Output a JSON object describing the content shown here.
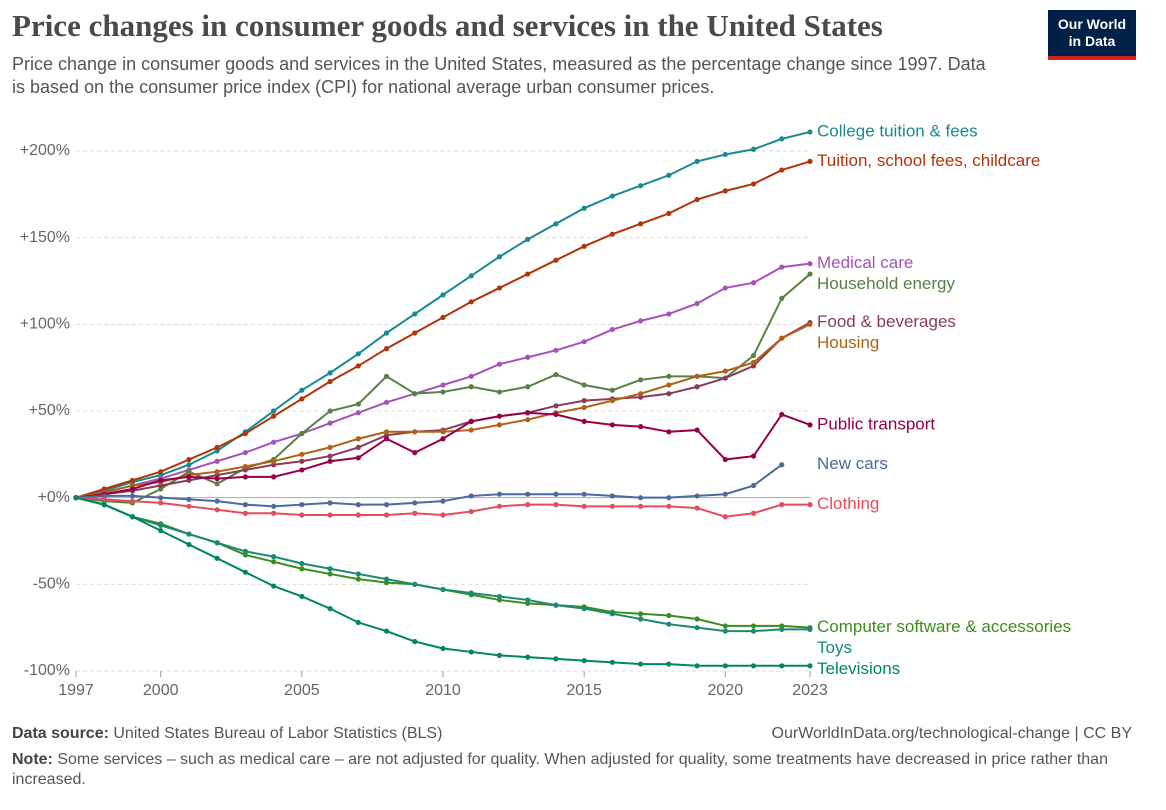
{
  "chart_data": {
    "type": "line",
    "title": "Price changes in consumer goods and services in the United States",
    "subtitle": "Price change in consumer goods and services in the United States, measured as the percentage change since 1997. Data is based on the consumer price index (CPI) for national average urban consumer prices.",
    "logo": [
      "Our World",
      "in Data"
    ],
    "x": [
      1997,
      1998,
      1999,
      2000,
      2001,
      2002,
      2003,
      2004,
      2005,
      2006,
      2007,
      2008,
      2009,
      2010,
      2011,
      2012,
      2013,
      2014,
      2015,
      2016,
      2017,
      2018,
      2019,
      2020,
      2021,
      2022,
      2023
    ],
    "xlim": [
      1997,
      2023
    ],
    "xticks": [
      1997,
      2000,
      2005,
      2010,
      2015,
      2020,
      2023
    ],
    "ylim": [
      -100,
      215
    ],
    "yticks": [
      {
        "value": -100,
        "label": "-100%"
      },
      {
        "value": -50,
        "label": "-50%"
      },
      {
        "value": 0,
        "label": "+0%"
      },
      {
        "value": 50,
        "label": "+50%"
      },
      {
        "value": 100,
        "label": "+100%"
      },
      {
        "value": 150,
        "label": "+150%"
      },
      {
        "value": 200,
        "label": "+200%"
      }
    ],
    "grid": true,
    "series": [
      {
        "name": "College tuition & fees",
        "color": "#178a94",
        "values": [
          0,
          4,
          9,
          13,
          19,
          27,
          38,
          50,
          62,
          72,
          83,
          95,
          106,
          117,
          128,
          139,
          149,
          158,
          167,
          174,
          180,
          186,
          194,
          198,
          201,
          207,
          211
        ]
      },
      {
        "name": "Tuition, school fees, childcare",
        "color": "#b13507",
        "values": [
          0,
          5,
          10,
          15,
          22,
          29,
          37,
          47,
          57,
          67,
          76,
          86,
          95,
          104,
          113,
          121,
          129,
          137,
          145,
          152,
          158,
          164,
          172,
          177,
          181,
          189,
          194
        ]
      },
      {
        "name": "Medical care",
        "color": "#a652ba",
        "values": [
          0,
          3,
          7,
          11,
          16,
          21,
          26,
          32,
          37,
          43,
          49,
          55,
          60,
          65,
          70,
          77,
          81,
          85,
          90,
          97,
          102,
          106,
          112,
          121,
          124,
          133,
          135
        ]
      },
      {
        "name": "Household energy",
        "color": "#578145",
        "values": [
          0,
          -2,
          -3,
          5,
          15,
          8,
          17,
          22,
          37,
          50,
          54,
          70,
          60,
          61,
          64,
          61,
          64,
          71,
          65,
          62,
          68,
          70,
          70,
          69,
          82,
          115,
          129
        ]
      },
      {
        "name": "Food & beverages",
        "color": "#883c5a",
        "values": [
          0,
          2,
          4,
          7,
          10,
          13,
          16,
          19,
          21,
          24,
          29,
          36,
          38,
          39,
          44,
          47,
          49,
          53,
          56,
          57,
          58,
          60,
          64,
          69,
          76,
          92,
          101
        ]
      },
      {
        "name": "Housing",
        "color": "#b16214",
        "values": [
          0,
          3,
          7,
          9,
          13,
          15,
          18,
          21,
          25,
          29,
          34,
          38,
          38,
          38,
          39,
          42,
          45,
          49,
          52,
          56,
          60,
          65,
          70,
          73,
          78,
          92,
          100
        ]
      },
      {
        "name": "Public transport",
        "color": "#970046",
        "values": [
          0,
          2,
          5,
          10,
          12,
          11,
          12,
          12,
          16,
          21,
          23,
          34,
          26,
          34,
          44,
          47,
          49,
          48,
          44,
          42,
          41,
          38,
          39,
          22,
          24,
          48,
          42
        ]
      },
      {
        "name": "New cars",
        "color": "#4c6a9c",
        "values": [
          0,
          1,
          1,
          0,
          -1,
          -2,
          -4,
          -5,
          -4,
          -3,
          -4,
          -4,
          -3,
          -2,
          1,
          2,
          2,
          2,
          2,
          1,
          0,
          0,
          1,
          2,
          7,
          19,
          null
        ]
      },
      {
        "name": "Clothing",
        "color": "#e04e5e",
        "values": [
          0,
          -1,
          -2,
          -3,
          -5,
          -7,
          -9,
          -9,
          -10,
          -10,
          -10,
          -10,
          -9,
          -10,
          -8,
          -5,
          -4,
          -4,
          -5,
          -5,
          -5,
          -5,
          -6,
          -11,
          -9,
          -4,
          -4
        ]
      },
      {
        "name": "Computer software & accessories",
        "color": "#3b8e1e",
        "values": [
          0,
          -4,
          -11,
          -15,
          -21,
          -26,
          -33,
          -37,
          -41,
          -44,
          -47,
          -49,
          -50,
          -53,
          -56,
          -59,
          -61,
          -62,
          -63,
          -66,
          -67,
          -68,
          -70,
          -74,
          -74,
          -74,
          -75
        ]
      },
      {
        "name": "Toys",
        "color": "#1b8a73",
        "values": [
          0,
          -4,
          -11,
          -16,
          -21,
          -26,
          -31,
          -34,
          -38,
          -41,
          -44,
          -47,
          -50,
          -53,
          -55,
          -57,
          -59,
          -62,
          -64,
          -67,
          -70,
          -73,
          -75,
          -77,
          -77,
          -76,
          -76
        ]
      },
      {
        "name": "Televisions",
        "color": "#00875e",
        "values": [
          0,
          -4,
          -11,
          -19,
          -27,
          -35,
          -43,
          -51,
          -57,
          -64,
          -72,
          -77,
          -83,
          -87,
          -89,
          -91,
          -92,
          -93,
          -94,
          -95,
          -96,
          -96,
          -97,
          -97,
          -97,
          -97,
          -97
        ]
      }
    ],
    "source_label": "Data source:",
    "source": "United States Bureau of Labor Statistics (BLS)",
    "url": "OurWorldInData.org/technological-change | CC BY",
    "note_label": "Note:",
    "note": "Some services – such as medical care – are not adjusted for quality. When adjusted for quality, some treatments have decreased in price rather than increased."
  }
}
